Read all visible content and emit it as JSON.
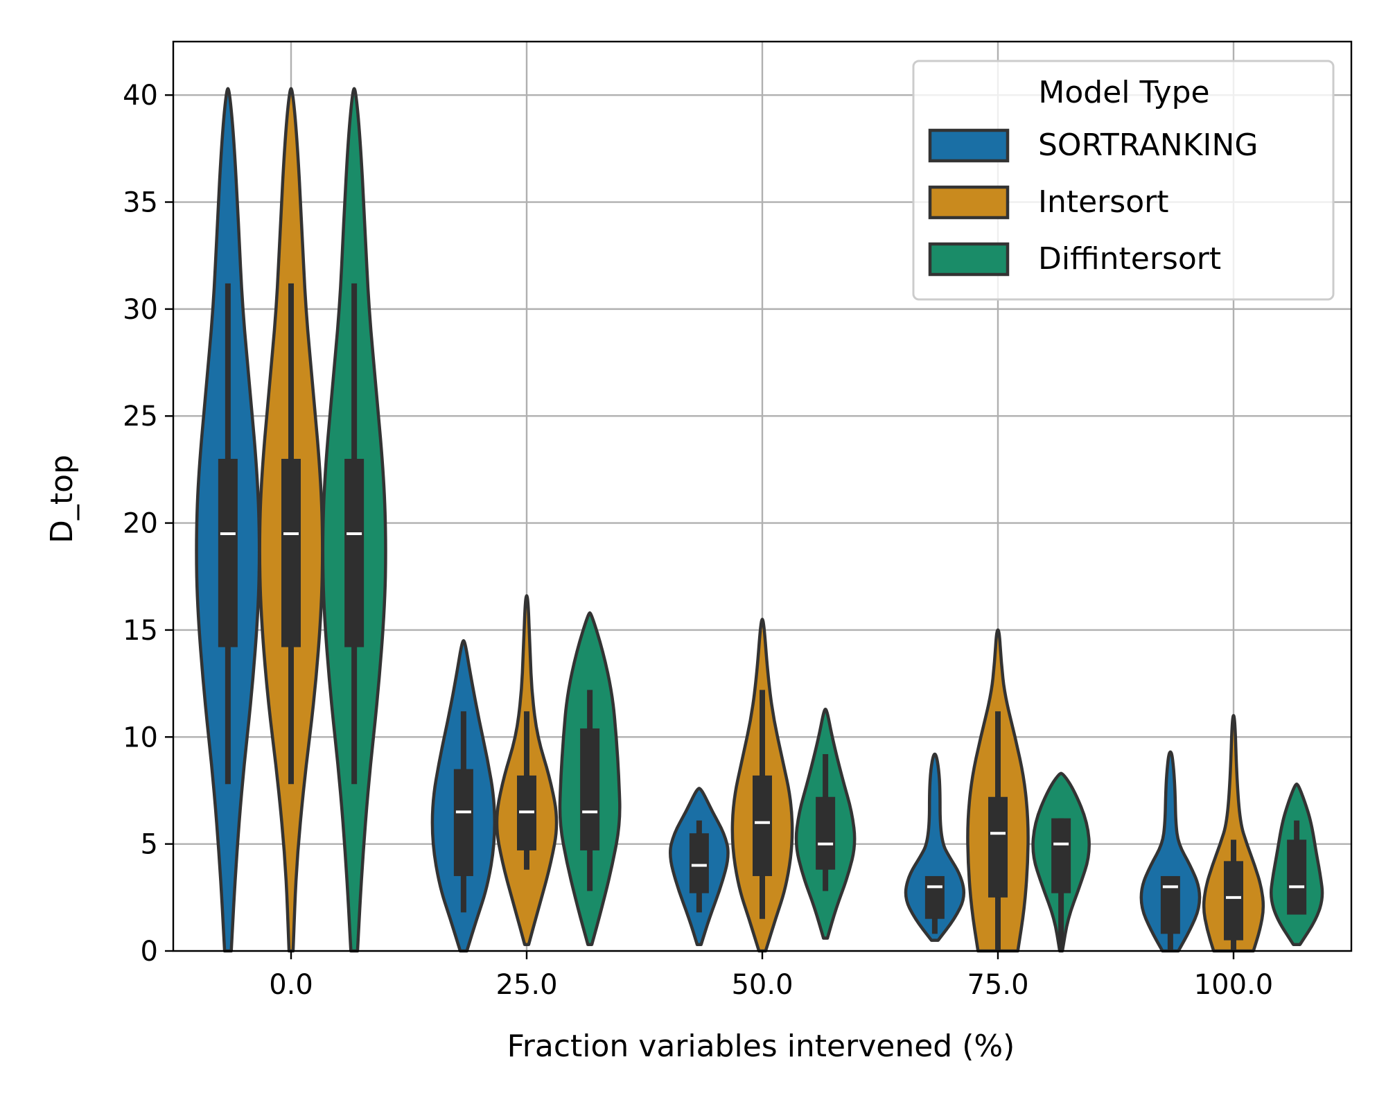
{
  "chart_data": {
    "type": "violin",
    "xlabel": "Fraction variables intervened (%)",
    "ylabel": "D_top",
    "categories": [
      "0.0",
      "25.0",
      "50.0",
      "75.0",
      "100.0"
    ],
    "yticks": [
      0,
      5,
      10,
      15,
      20,
      25,
      30,
      35,
      40
    ],
    "ylim": [
      0,
      42.5
    ],
    "grid": true,
    "legend": {
      "title": "Model Type",
      "placement": "top-right"
    },
    "series": [
      {
        "name": "SORTRANKING",
        "color": "#1a6fa5",
        "groups": [
          {
            "category": "0.0",
            "min": 0,
            "max": 40.3,
            "q1": 14.2,
            "median": 19.5,
            "q3": 23.0,
            "whisker_low": 7.8,
            "whisker_high": 31.2,
            "max_density_half_width_frac": 0.36,
            "profile": [
              [
                0,
                0.05
              ],
              [
                4,
                0.12
              ],
              [
                8,
                0.22
              ],
              [
                12,
                0.36
              ],
              [
                16,
                0.46
              ],
              [
                19,
                0.48
              ],
              [
                22,
                0.45
              ],
              [
                26,
                0.34
              ],
              [
                30,
                0.22
              ],
              [
                34,
                0.16
              ],
              [
                38,
                0.09
              ],
              [
                40.3,
                0.02
              ]
            ]
          },
          {
            "category": "25.0",
            "min": 0,
            "max": 14.5,
            "q1": 3.5,
            "median": 6.5,
            "q3": 8.5,
            "whisker_low": 1.8,
            "whisker_high": 11.2,
            "profile": [
              [
                0,
                0.05
              ],
              [
                1.5,
                0.2
              ],
              [
                3,
                0.36
              ],
              [
                5,
                0.47
              ],
              [
                7,
                0.47
              ],
              [
                9,
                0.36
              ],
              [
                11,
                0.22
              ],
              [
                13,
                0.1
              ],
              [
                14.5,
                0.02
              ]
            ]
          },
          {
            "category": "50.0",
            "min": 0.3,
            "max": 7.6,
            "q1": 2.7,
            "median": 4.0,
            "q3": 5.5,
            "whisker_low": 1.8,
            "whisker_high": 6.1,
            "profile": [
              [
                0.3,
                0.03
              ],
              [
                1.5,
                0.15
              ],
              [
                3,
                0.33
              ],
              [
                4.5,
                0.46
              ],
              [
                5.5,
                0.38
              ],
              [
                6.5,
                0.2
              ],
              [
                7.6,
                0.03
              ]
            ]
          },
          {
            "category": "75.0",
            "min": 0.5,
            "max": 9.2,
            "q1": 1.5,
            "median": 3.0,
            "q3": 3.5,
            "whisker_low": 0.8,
            "whisker_high": 3.5,
            "profile": [
              [
                0.5,
                0.05
              ],
              [
                1.5,
                0.3
              ],
              [
                2.5,
                0.46
              ],
              [
                3.5,
                0.4
              ],
              [
                4.5,
                0.2
              ],
              [
                5,
                0.12
              ],
              [
                6,
                0.08
              ],
              [
                7.5,
                0.08
              ],
              [
                8.5,
                0.06
              ],
              [
                9.2,
                0.02
              ]
            ]
          },
          {
            "category": "100.0",
            "min": 0,
            "max": 9.3,
            "q1": 0.8,
            "median": 3.0,
            "q3": 3.5,
            "whisker_low": 0,
            "whisker_high": 3.5,
            "profile": [
              [
                0,
                0.12
              ],
              [
                1,
                0.3
              ],
              [
                2,
                0.44
              ],
              [
                3,
                0.44
              ],
              [
                4,
                0.3
              ],
              [
                5,
                0.12
              ],
              [
                6,
                0.08
              ],
              [
                7.5,
                0.07
              ],
              [
                8.5,
                0.05
              ],
              [
                9.3,
                0.02
              ]
            ]
          }
        ]
      },
      {
        "name": "Intersort",
        "color": "#c98a1e",
        "groups": [
          {
            "category": "0.0",
            "min": 0,
            "max": 40.3,
            "q1": 14.2,
            "median": 19.5,
            "q3": 23.0,
            "whisker_low": 7.8,
            "whisker_high": 31.2,
            "profile": [
              [
                0,
                0.03
              ],
              [
                4,
                0.08
              ],
              [
                8,
                0.2
              ],
              [
                12,
                0.36
              ],
              [
                16,
                0.46
              ],
              [
                19,
                0.48
              ],
              [
                22,
                0.45
              ],
              [
                26,
                0.34
              ],
              [
                30,
                0.22
              ],
              [
                34,
                0.16
              ],
              [
                38,
                0.09
              ],
              [
                40.3,
                0.02
              ]
            ]
          },
          {
            "category": "25.0",
            "min": 0.3,
            "max": 16.6,
            "q1": 4.7,
            "median": 6.5,
            "q3": 8.2,
            "whisker_low": 3.8,
            "whisker_high": 11.2,
            "profile": [
              [
                0.3,
                0.03
              ],
              [
                2,
                0.18
              ],
              [
                4,
                0.36
              ],
              [
                6,
                0.48
              ],
              [
                8,
                0.36
              ],
              [
                10,
                0.16
              ],
              [
                12,
                0.08
              ],
              [
                14,
                0.05
              ],
              [
                16.6,
                0.02
              ]
            ]
          },
          {
            "category": "50.0",
            "min": 0,
            "max": 15.5,
            "q1": 3.5,
            "median": 6.0,
            "q3": 8.2,
            "whisker_low": 1.5,
            "whisker_high": 12.2,
            "profile": [
              [
                0,
                0.05
              ],
              [
                1.5,
                0.2
              ],
              [
                3,
                0.36
              ],
              [
                5,
                0.46
              ],
              [
                7,
                0.44
              ],
              [
                9,
                0.3
              ],
              [
                11,
                0.16
              ],
              [
                13,
                0.08
              ],
              [
                15.5,
                0.02
              ]
            ]
          },
          {
            "category": "75.0",
            "min": 0,
            "max": 15.0,
            "q1": 2.5,
            "median": 5.5,
            "q3": 7.2,
            "whisker_low": 0,
            "whisker_high": 11.2,
            "profile": [
              [
                0,
                0.3
              ],
              [
                2,
                0.4
              ],
              [
                4,
                0.45
              ],
              [
                6,
                0.46
              ],
              [
                8,
                0.4
              ],
              [
                10,
                0.26
              ],
              [
                12,
                0.1
              ],
              [
                13.5,
                0.05
              ],
              [
                15,
                0.02
              ]
            ]
          },
          {
            "category": "100.0",
            "min": 0,
            "max": 11.0,
            "q1": 0.5,
            "median": 2.5,
            "q3": 4.2,
            "whisker_low": 0,
            "whisker_high": 5.2,
            "profile": [
              [
                0,
                0.3
              ],
              [
                1,
                0.4
              ],
              [
                2,
                0.46
              ],
              [
                3,
                0.42
              ],
              [
                4,
                0.32
              ],
              [
                5,
                0.2
              ],
              [
                6,
                0.1
              ],
              [
                8,
                0.05
              ],
              [
                11,
                0.02
              ]
            ]
          }
        ]
      },
      {
        "name": "Diffintersort",
        "color": "#1a8c68",
        "groups": [
          {
            "category": "0.0",
            "min": 0,
            "max": 40.3,
            "q1": 14.2,
            "median": 19.5,
            "q3": 23.0,
            "whisker_low": 7.8,
            "whisker_high": 31.2,
            "profile": [
              [
                0,
                0.05
              ],
              [
                4,
                0.12
              ],
              [
                8,
                0.22
              ],
              [
                12,
                0.36
              ],
              [
                16,
                0.46
              ],
              [
                19,
                0.48
              ],
              [
                22,
                0.45
              ],
              [
                26,
                0.34
              ],
              [
                30,
                0.22
              ],
              [
                34,
                0.16
              ],
              [
                38,
                0.09
              ],
              [
                40.3,
                0.02
              ]
            ]
          },
          {
            "category": "25.0",
            "min": 0.3,
            "max": 15.8,
            "q1": 4.7,
            "median": 6.5,
            "q3": 10.4,
            "whisker_low": 2.8,
            "whisker_high": 12.2,
            "profile": [
              [
                0.3,
                0.03
              ],
              [
                2,
                0.18
              ],
              [
                4,
                0.34
              ],
              [
                6,
                0.46
              ],
              [
                8,
                0.44
              ],
              [
                10,
                0.4
              ],
              [
                12,
                0.34
              ],
              [
                14,
                0.2
              ],
              [
                15.8,
                0.02
              ]
            ]
          },
          {
            "category": "50.0",
            "min": 0.6,
            "max": 11.3,
            "q1": 3.8,
            "median": 5.0,
            "q3": 7.2,
            "whisker_low": 2.8,
            "whisker_high": 9.2,
            "profile": [
              [
                0.6,
                0.03
              ],
              [
                2,
                0.16
              ],
              [
                3.5,
                0.34
              ],
              [
                5,
                0.46
              ],
              [
                6.5,
                0.4
              ],
              [
                8,
                0.26
              ],
              [
                10,
                0.1
              ],
              [
                11.3,
                0.02
              ]
            ]
          },
          {
            "category": "75.0",
            "min": 0,
            "max": 8.3,
            "q1": 2.7,
            "median": 5.0,
            "q3": 6.2,
            "whisker_low": 0,
            "whisker_high": 6.2,
            "profile": [
              [
                0,
                0.02
              ],
              [
                1.5,
                0.1
              ],
              [
                3,
                0.28
              ],
              [
                4.5,
                0.44
              ],
              [
                6,
                0.4
              ],
              [
                7.5,
                0.2
              ],
              [
                8.3,
                0.03
              ]
            ]
          },
          {
            "category": "100.0",
            "min": 0.3,
            "max": 7.8,
            "q1": 1.7,
            "median": 3.0,
            "q3": 5.2,
            "whisker_low": 1.7,
            "whisker_high": 6.1,
            "profile": [
              [
                0.3,
                0.05
              ],
              [
                1.5,
                0.3
              ],
              [
                2.5,
                0.4
              ],
              [
                3.5,
                0.36
              ],
              [
                4.5,
                0.3
              ],
              [
                6,
                0.22
              ],
              [
                7,
                0.12
              ],
              [
                7.8,
                0.02
              ]
            ]
          }
        ]
      }
    ]
  }
}
